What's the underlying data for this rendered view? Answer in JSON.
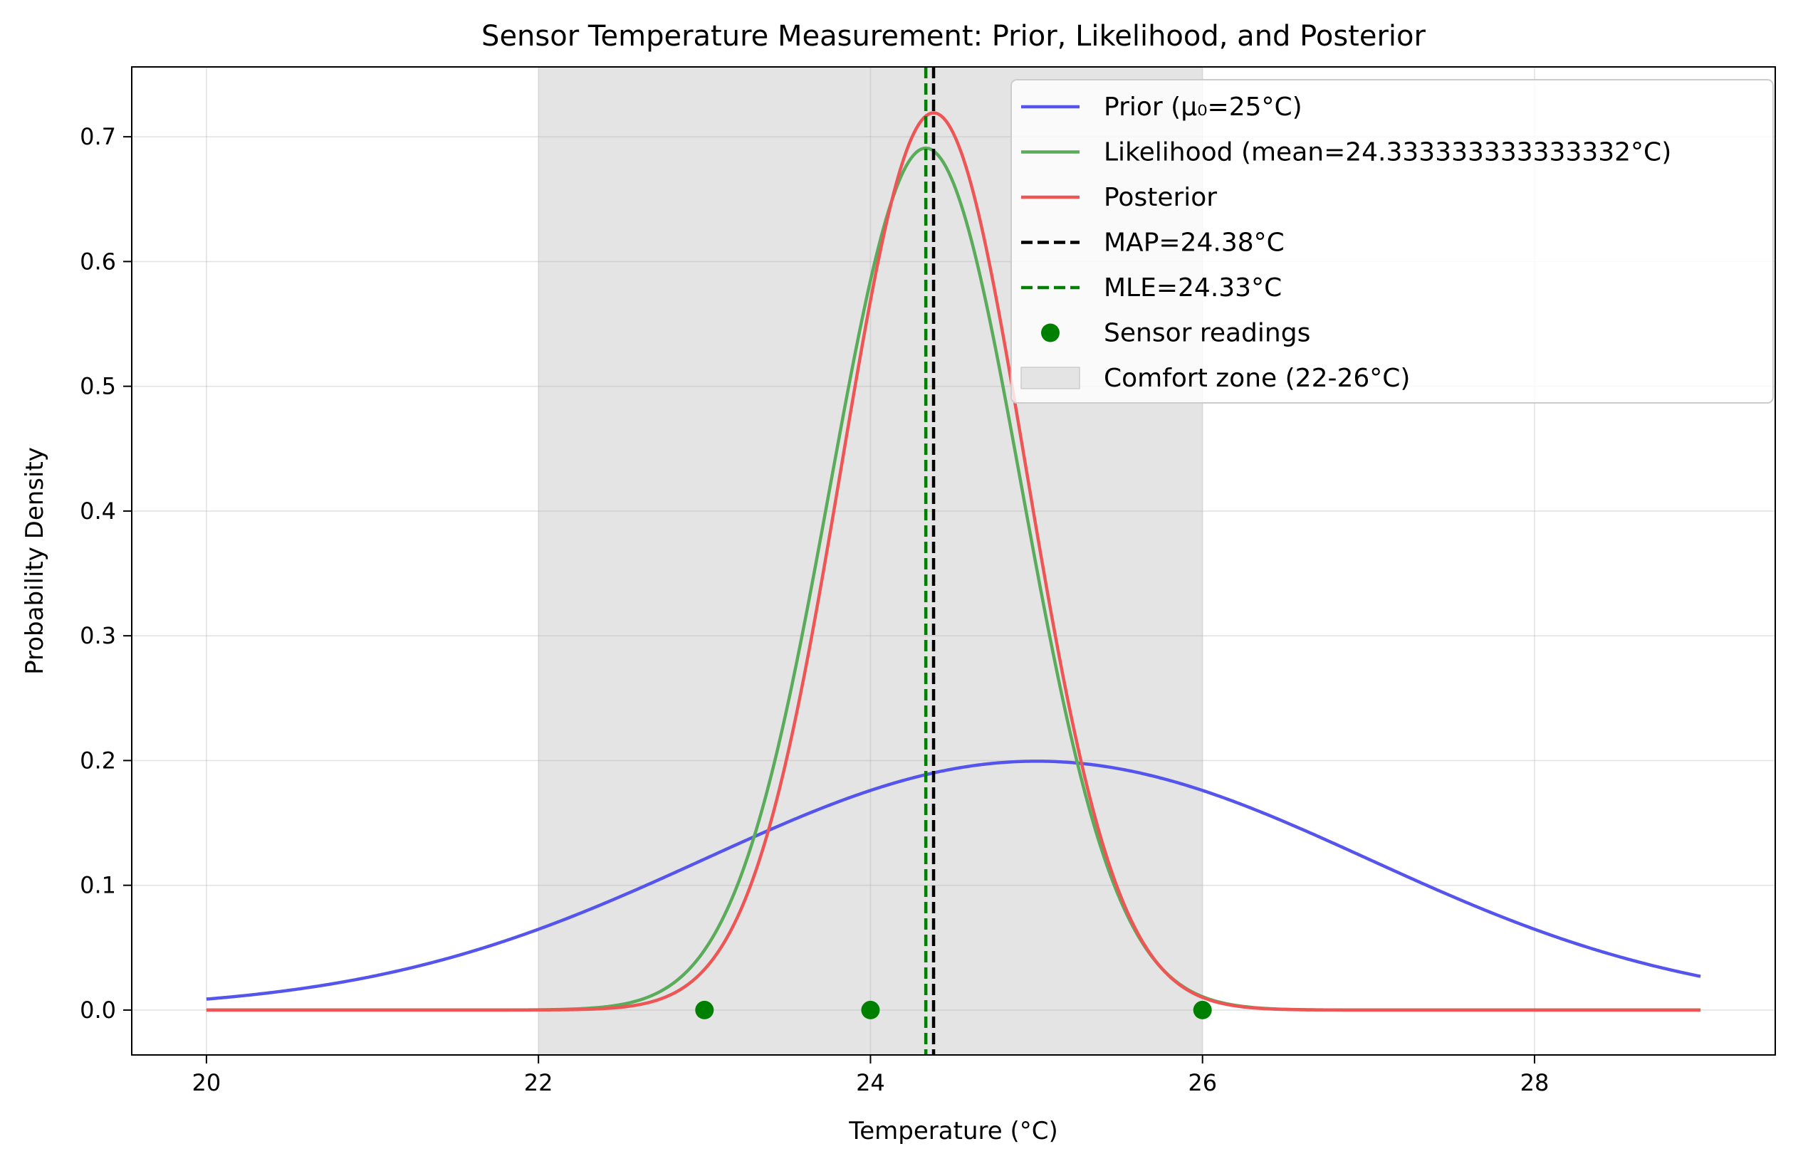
{
  "chart_data": {
    "type": "line",
    "title": "Sensor Temperature Measurement: Prior, Likelihood, and Posterior",
    "xlabel": "Temperature (°C)",
    "ylabel": "Probability Density",
    "xlim": [
      19.55,
      29.45
    ],
    "ylim": [
      -0.036,
      0.756
    ],
    "x_ticks": [
      20,
      22,
      24,
      26,
      28
    ],
    "y_ticks": [
      0.0,
      0.1,
      0.2,
      0.3,
      0.4,
      0.5,
      0.6,
      0.7
    ],
    "x_tick_labels": [
      "20",
      "22",
      "24",
      "26",
      "28"
    ],
    "y_tick_labels": [
      "0.0",
      "0.1",
      "0.2",
      "0.3",
      "0.4",
      "0.5",
      "0.6",
      "0.7"
    ],
    "grid": true,
    "legend_position": "top-right",
    "x_range": [
      20,
      29
    ],
    "series": [
      {
        "name": "Prior (μ₀=25°C)",
        "kind": "normal",
        "mean": 25.0,
        "sd": 2.0,
        "color": "#5555ee"
      },
      {
        "name": "Likelihood (mean=24.333333333333332°C)",
        "kind": "normal",
        "mean": 24.333333333333332,
        "sd": 0.5774,
        "color": "#5aab5a"
      },
      {
        "name": "Posterior",
        "kind": "normal",
        "mean": 24.38,
        "sd": 0.5547,
        "color": "#ee5555"
      }
    ],
    "vlines": [
      {
        "name": "MAP=24.38°C",
        "x": 24.38,
        "color": "#000000"
      },
      {
        "name": "MLE=24.33°C",
        "x": 24.333333333333332,
        "color": "#008000"
      }
    ],
    "points": {
      "name": "Sensor readings",
      "x": [
        23,
        24,
        26
      ],
      "y": [
        0,
        0,
        0
      ],
      "color": "#008000"
    },
    "shaded_region": {
      "name": "Comfort zone (22-26°C)",
      "x": [
        22,
        26
      ],
      "color": "#e4e4e4"
    }
  }
}
